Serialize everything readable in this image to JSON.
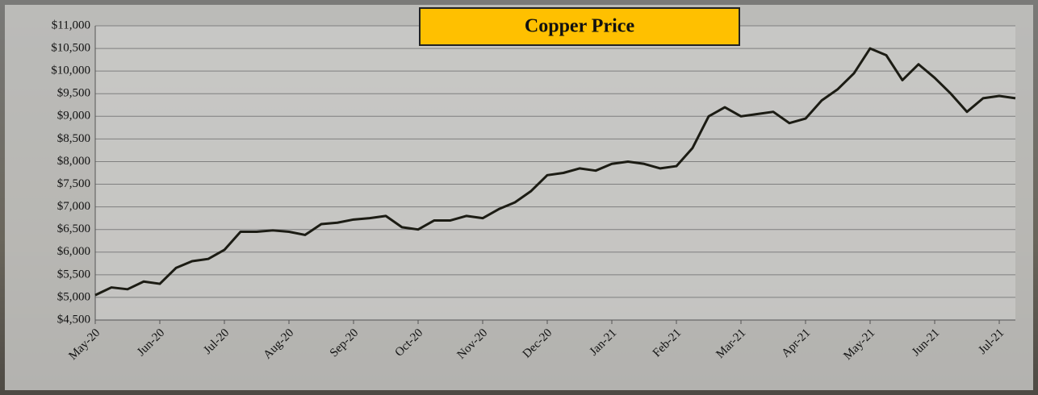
{
  "chart_data": {
    "type": "line",
    "title": "Copper Price",
    "categories": [
      "May-20",
      null,
      null,
      null,
      "Jun-20",
      null,
      null,
      null,
      "Jul-20",
      null,
      null,
      null,
      "Aug-20",
      null,
      null,
      null,
      "Sep-20",
      null,
      null,
      null,
      "Oct-20",
      null,
      null,
      null,
      "Nov-20",
      null,
      null,
      null,
      "Dec-20",
      null,
      null,
      null,
      "Jan-21",
      null,
      null,
      null,
      "Feb-21",
      null,
      null,
      null,
      "Mar-21",
      null,
      null,
      null,
      "Apr-21",
      null,
      null,
      null,
      "May-21",
      null,
      null,
      null,
      "Jun-21",
      null,
      null,
      null,
      "Jul-21",
      null
    ],
    "values": [
      5050,
      5220,
      5180,
      5350,
      5300,
      5650,
      5800,
      5850,
      6050,
      6450,
      6450,
      6480,
      6450,
      6380,
      6620,
      6650,
      6720,
      6750,
      6800,
      6550,
      6500,
      6700,
      6700,
      6800,
      6750,
      6950,
      7100,
      7350,
      7700,
      7750,
      7850,
      7800,
      7950,
      8000,
      7950,
      7850,
      7900,
      8300,
      9000,
      9200,
      9000,
      9050,
      9100,
      8850,
      8950,
      9350,
      9600,
      9950,
      10500,
      10350,
      9800,
      10150,
      9850,
      9500,
      9100,
      9400,
      9450,
      9400
    ],
    "color": "#1c1c14",
    "ylim": [
      4500,
      11000
    ],
    "yticks": [
      {
        "value": 4500,
        "label": "$4,500"
      },
      {
        "value": 5000,
        "label": "$5,000"
      },
      {
        "value": 5500,
        "label": "$5,500"
      },
      {
        "value": 6000,
        "label": "$6,000"
      },
      {
        "value": 6500,
        "label": "$6,500"
      },
      {
        "value": 7000,
        "label": "$7,000"
      },
      {
        "value": 7500,
        "label": "$7,500"
      },
      {
        "value": 8000,
        "label": "$8,000"
      },
      {
        "value": 8500,
        "label": "$8,500"
      },
      {
        "value": 9000,
        "label": "$9,000"
      },
      {
        "value": 9500,
        "label": "$9,500"
      },
      {
        "value": 10000,
        "label": "$10,000"
      },
      {
        "value": 10500,
        "label": "$10,500"
      },
      {
        "value": 11000,
        "label": "$11,000"
      }
    ],
    "grid": true
  }
}
